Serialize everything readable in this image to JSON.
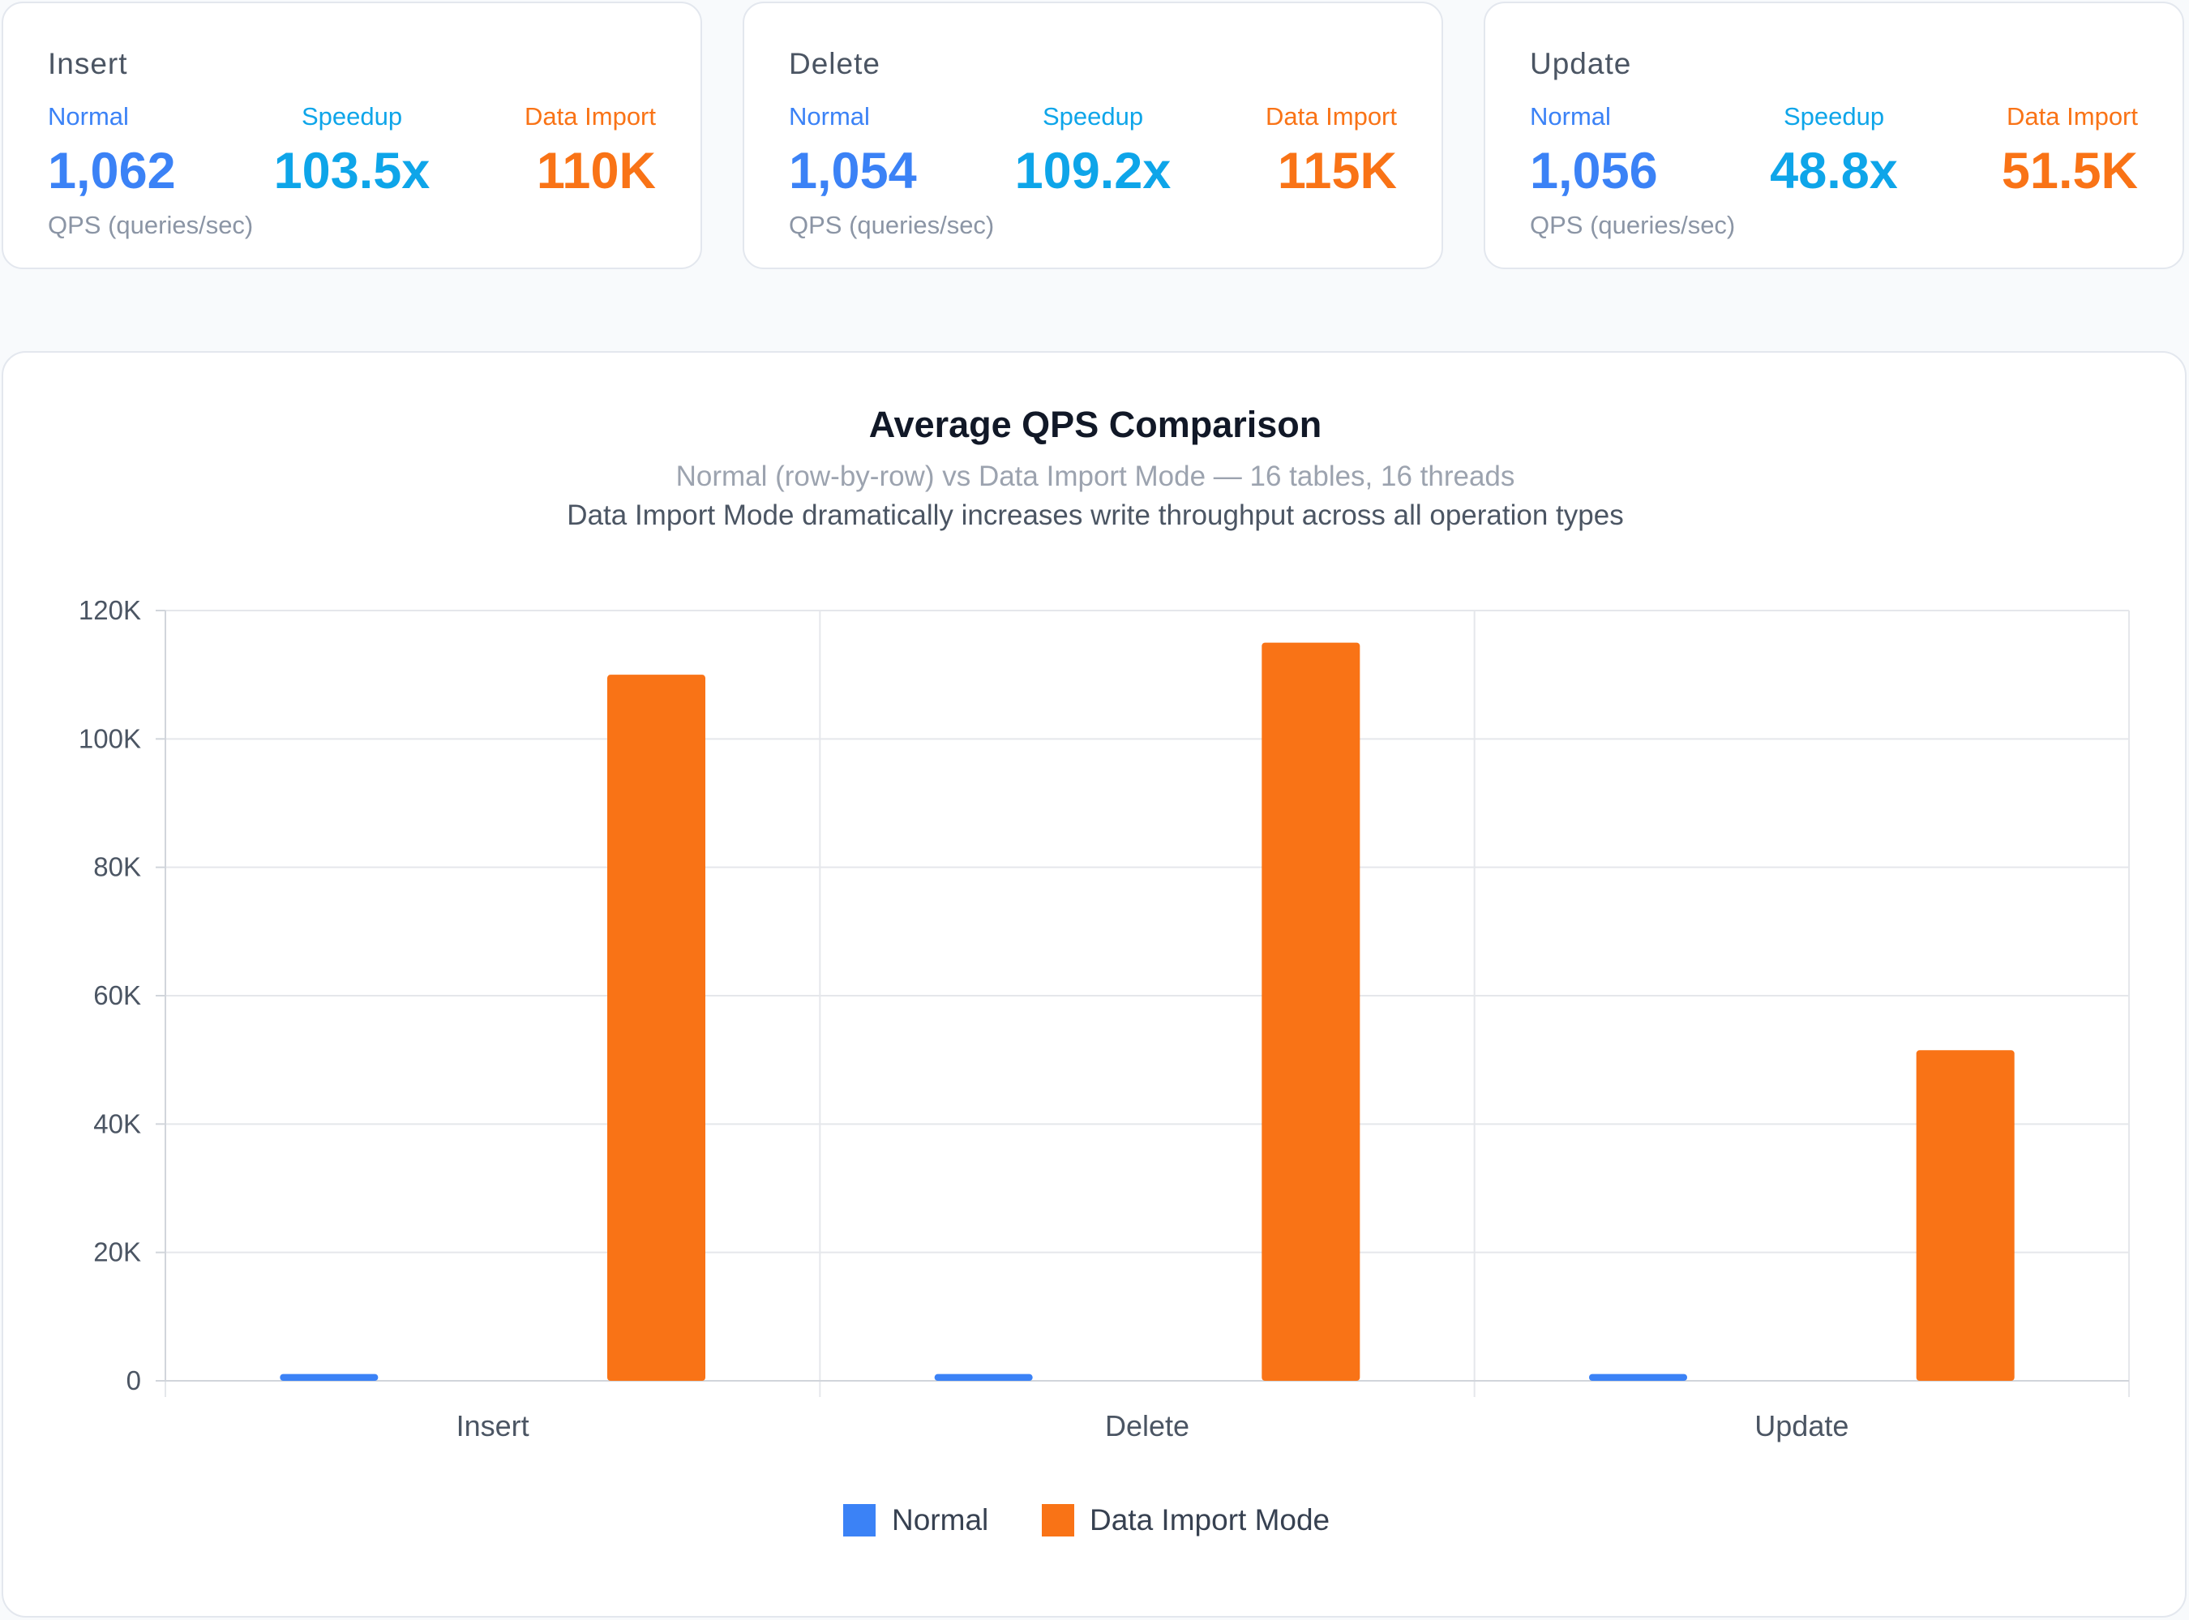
{
  "cards": [
    {
      "title": "Insert",
      "normal_label": "Normal",
      "normal_value": "1,062",
      "speedup_label": "Speedup",
      "speedup_value": "103.5x",
      "import_label": "Data Import",
      "import_value": "110K",
      "unit": "QPS (queries/sec)"
    },
    {
      "title": "Delete",
      "normal_label": "Normal",
      "normal_value": "1,054",
      "speedup_label": "Speedup",
      "speedup_value": "109.2x",
      "import_label": "Data Import",
      "import_value": "115K",
      "unit": "QPS (queries/sec)"
    },
    {
      "title": "Update",
      "normal_label": "Normal",
      "normal_value": "1,056",
      "speedup_label": "Speedup",
      "speedup_value": "48.8x",
      "import_label": "Data Import",
      "import_value": "51.5K",
      "unit": "QPS (queries/sec)"
    }
  ],
  "colors": {
    "normal": "#3b82f6",
    "speedup": "#0ea5e9",
    "data_import": "#f97316",
    "grid": "#e5e7eb",
    "axis": "#d1d5db",
    "tick_text": "#4b5563"
  },
  "chart_data": {
    "type": "bar",
    "title": "Average QPS Comparison",
    "subtitle": "Normal (row-by-row) vs Data Import Mode — 16 tables, 16 threads",
    "description": "Data Import Mode dramatically increases write throughput across all operation types",
    "categories": [
      "Insert",
      "Delete",
      "Update"
    ],
    "series": [
      {
        "name": "Normal",
        "values": [
          1062,
          1054,
          1056
        ],
        "color": "#3b82f6"
      },
      {
        "name": "Data Import Mode",
        "values": [
          110000,
          115000,
          51500
        ],
        "color": "#f97316"
      }
    ],
    "ylim": [
      0,
      120000
    ],
    "y_ticks": [
      0,
      20000,
      40000,
      60000,
      80000,
      100000,
      120000
    ],
    "y_tick_labels": [
      "0",
      "20K",
      "40K",
      "60K",
      "80K",
      "100K",
      "120K"
    ],
    "xlabel": "",
    "ylabel": "",
    "grid": true,
    "legend_position": "bottom"
  }
}
